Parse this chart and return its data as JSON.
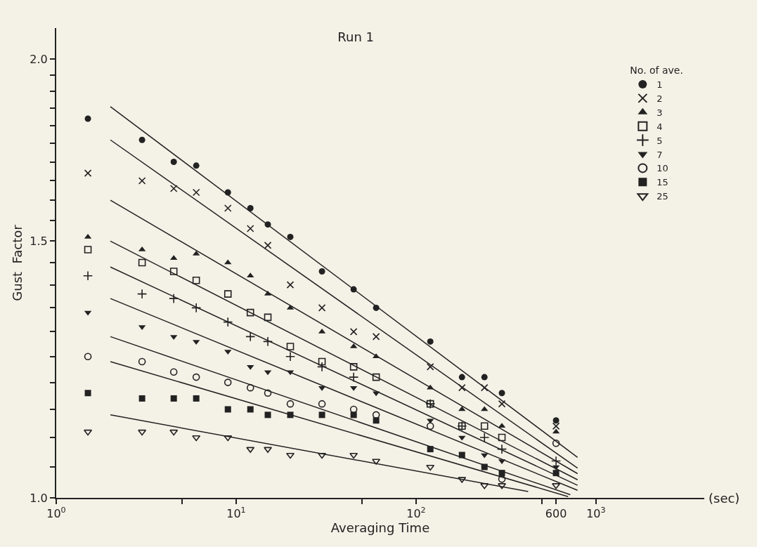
{
  "chart_data": {
    "type": "scatter",
    "title": "Run 1",
    "xlabel": "Averaging Time",
    "ylabel": "Gust  Factor",
    "legend_title": "No. of ave.",
    "annotations": [
      "(sec)"
    ],
    "log": "xy",
    "grid": false,
    "legend": "top right",
    "x": [
      1.5,
      3,
      4.5,
      6,
      9,
      12,
      15,
      20,
      30,
      45,
      60,
      120,
      180,
      240,
      300,
      600
    ],
    "xlim": [
      1,
      4000
    ],
    "xticks": [
      {
        "value": 1,
        "label": "10$^{0}$"
      },
      {
        "value": 5,
        "label": null
      },
      {
        "value": 10,
        "label": "10$^{1}$"
      },
      {
        "value": 50,
        "label": null
      },
      {
        "value": 100,
        "label": "10$^{2}$"
      },
      {
        "value": 500,
        "label": null
      },
      {
        "value": 600,
        "label": "600"
      },
      {
        "value": 1000,
        "label": "10$^{3}$"
      }
    ],
    "ylim": [
      1.0,
      2.1
    ],
    "yticks": [
      {
        "value": 1.0,
        "label": "1.0"
      },
      {
        "value": 1.05,
        "label": null
      },
      {
        "value": 1.1,
        "label": null
      },
      {
        "value": 1.15,
        "label": null
      },
      {
        "value": 1.2,
        "label": null
      },
      {
        "value": 1.25,
        "label": null
      },
      {
        "value": 1.3,
        "label": null
      },
      {
        "value": 1.35,
        "label": null
      },
      {
        "value": 1.4,
        "label": null
      },
      {
        "value": 1.45,
        "label": null
      },
      1.5,
      {
        "value": 1.55,
        "label": null
      },
      {
        "value": 1.6,
        "label": null
      },
      {
        "value": 1.65,
        "label": null
      },
      {
        "value": 1.7,
        "label": null
      },
      {
        "value": 1.75,
        "label": null
      },
      {
        "value": 1.8,
        "label": null
      },
      {
        "value": 1.85,
        "label": null
      },
      {
        "value": 1.9,
        "label": null
      },
      {
        "value": 1.95,
        "label": null
      },
      {
        "value": 2.0,
        "label": "2.0"
      }
    ],
    "series": [
      {
        "name": "1",
        "color": "#222222",
        "marker": "circle",
        "values": [
          1.82,
          1.76,
          1.7,
          1.69,
          1.62,
          1.58,
          1.54,
          1.51,
          1.43,
          1.39,
          1.35,
          1.28,
          1.21,
          1.21,
          1.18,
          1.13
        ]
      },
      {
        "name": "2",
        "color": "#222222",
        "marker": "x",
        "values": [
          1.67,
          1.65,
          1.63,
          1.62,
          1.58,
          1.53,
          1.49,
          1.4,
          1.35,
          1.3,
          1.29,
          1.23,
          1.19,
          1.19,
          1.16,
          1.12
        ]
      },
      {
        "name": "3",
        "color": "#222222",
        "marker": "triangle-up",
        "values": [
          1.51,
          1.48,
          1.46,
          1.47,
          1.45,
          1.42,
          1.38,
          1.35,
          1.3,
          1.27,
          1.25,
          1.19,
          1.15,
          1.15,
          1.12,
          1.11
        ]
      },
      {
        "name": "4",
        "color": "#222222",
        "marker": "square-open",
        "values": [
          1.48,
          1.45,
          1.43,
          1.41,
          1.38,
          1.34,
          1.33,
          1.27,
          1.24,
          1.23,
          1.21,
          1.16,
          1.12,
          1.12,
          1.1,
          null
        ]
      },
      {
        "name": "5",
        "color": "#222222",
        "marker": "cross-thin",
        "values": [
          1.42,
          1.38,
          1.37,
          1.35,
          1.32,
          1.29,
          1.28,
          1.25,
          1.23,
          1.21,
          null,
          1.16,
          1.12,
          1.1,
          1.08,
          1.06
        ]
      },
      {
        "name": "7",
        "color": "#222222",
        "marker": "triangle-down",
        "values": [
          1.34,
          1.31,
          1.29,
          1.28,
          1.26,
          1.23,
          1.22,
          1.22,
          1.19,
          1.19,
          1.18,
          1.13,
          1.1,
          1.07,
          1.06,
          1.05
        ]
      },
      {
        "name": "10",
        "color": "#222222",
        "marker": "circle-open",
        "values": [
          1.25,
          1.24,
          1.22,
          1.21,
          1.2,
          1.19,
          1.18,
          1.16,
          1.16,
          1.15,
          1.14,
          1.12,
          null,
          null,
          1.03,
          1.09
        ]
      },
      {
        "name": "15",
        "color": "#222222",
        "marker": "square",
        "values": [
          1.18,
          1.17,
          1.17,
          1.17,
          1.15,
          1.15,
          1.14,
          1.14,
          1.14,
          1.14,
          1.13,
          1.08,
          1.07,
          1.05,
          1.04,
          1.04
        ]
      },
      {
        "name": "25",
        "color": "#222222",
        "marker": "triangle-down-open",
        "values": [
          1.11,
          1.11,
          1.11,
          1.1,
          1.1,
          1.08,
          1.08,
          1.07,
          1.07,
          1.07,
          1.06,
          1.05,
          1.03,
          1.02,
          1.02,
          1.02
        ]
      },
      {
        "type": "line",
        "color": "#222222",
        "marker": "none",
        "line_style": "solid",
        "x": [
          2,
          790
        ],
        "values": [
          1.855,
          1.066
        ]
      },
      {
        "type": "line",
        "color": "#222222",
        "marker": "none",
        "line_style": "solid",
        "x": [
          2,
          790
        ],
        "values": [
          1.76,
          1.048
        ]
      },
      {
        "type": "line",
        "color": "#222222",
        "marker": "none",
        "line_style": "solid",
        "x": [
          2,
          790
        ],
        "values": [
          1.6,
          1.039
        ]
      },
      {
        "type": "line",
        "color": "#222222",
        "marker": "none",
        "line_style": "solid",
        "x": [
          2,
          790
        ],
        "values": [
          1.5,
          1.029
        ]
      },
      {
        "type": "line",
        "color": "#222222",
        "marker": "none",
        "line_style": "solid",
        "x": [
          2,
          790
        ],
        "values": [
          1.44,
          1.02
        ]
      },
      {
        "type": "line",
        "color": "#222222",
        "marker": "none",
        "line_style": "solid",
        "x": [
          2,
          790
        ],
        "values": [
          1.37,
          1.012
        ]
      },
      {
        "type": "line",
        "color": "#222222",
        "marker": "none",
        "line_style": "solid",
        "x": [
          2,
          720
        ],
        "values": [
          1.29,
          1.005
        ]
      },
      {
        "type": "line",
        "color": "#222222",
        "marker": "none",
        "line_style": "solid",
        "x": [
          2,
          700
        ],
        "values": [
          1.24,
          1.002
        ]
      },
      {
        "type": "line",
        "color": "#222222",
        "marker": "none",
        "line_style": "solid",
        "x": [
          2,
          420
        ],
        "values": [
          1.14,
          1.01
        ]
      }
    ]
  }
}
